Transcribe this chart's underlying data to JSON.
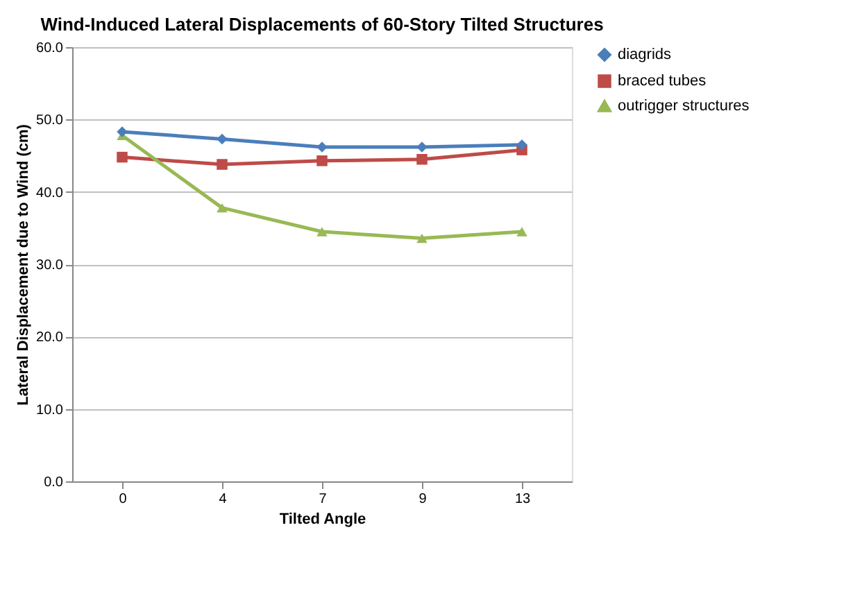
{
  "chart_data": {
    "type": "line",
    "title": "Wind-Induced Lateral Displacements of 60-Story Tilted Structures",
    "xlabel": "Tilted Angle",
    "ylabel": "Lateral Displacement due to Wind (cm)",
    "categories": [
      "0",
      "4",
      "7",
      "9",
      "13"
    ],
    "series": [
      {
        "name": "diagrids",
        "color": "#4a7ebb",
        "marker": "diamond",
        "values": [
          48.3,
          47.3,
          46.2,
          46.2,
          46.5
        ]
      },
      {
        "name": "braced tubes",
        "color": "#be4b48",
        "marker": "square",
        "values": [
          44.8,
          43.8,
          44.3,
          44.5,
          45.8
        ]
      },
      {
        "name": "outrigger structures",
        "color": "#98b954",
        "marker": "triangle",
        "values": [
          47.8,
          37.8,
          34.5,
          33.6,
          34.5
        ]
      }
    ],
    "ylim": [
      0,
      60
    ],
    "yticks": [
      {
        "value": 0,
        "label": "0.0"
      },
      {
        "value": 10,
        "label": "10.0"
      },
      {
        "value": 20,
        "label": "20.0"
      },
      {
        "value": 30,
        "label": "30.0"
      },
      {
        "value": 40,
        "label": "40.0"
      },
      {
        "value": 50,
        "label": "50.0"
      },
      {
        "value": 60,
        "label": "60.0"
      }
    ],
    "grid": "y",
    "legend": "right",
    "line_style": "solid"
  }
}
